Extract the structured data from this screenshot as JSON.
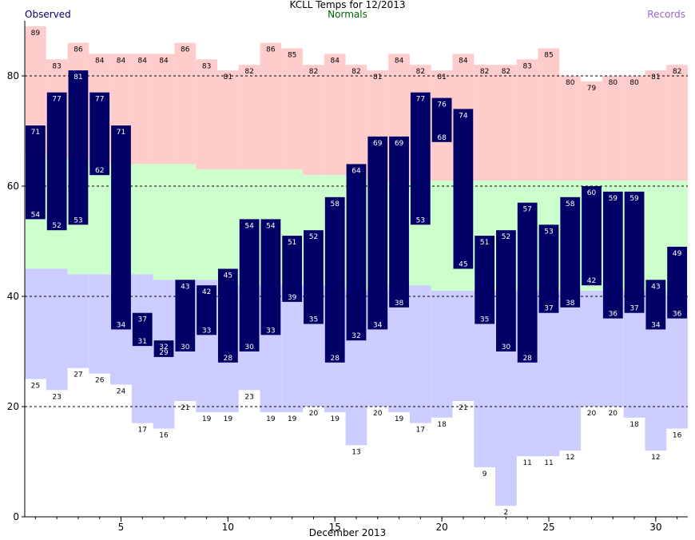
{
  "title": "KCLL Temps for 12/2013",
  "legend": {
    "observed": "Observed",
    "normals": "Normals",
    "records": "Records"
  },
  "colors": {
    "observed_bar": "#000066",
    "normals_band": "#ccffcc",
    "record_high_band": "#ffcccc",
    "record_low_band": "#ccccff",
    "observed_label": "#000066",
    "normals_label": "#006600",
    "records_label": "#9966cc"
  },
  "chart_data": {
    "type": "bar",
    "title": "KCLL Temps for 12/2013",
    "xlabel": "December 2013",
    "ylabel": "",
    "xlim": [
      0.5,
      31.5
    ],
    "ylim": [
      0,
      90
    ],
    "x_ticks": [
      5,
      10,
      15,
      20,
      25,
      30
    ],
    "y_ticks": [
      0,
      20,
      40,
      60,
      80
    ],
    "grid": "dashed horizontal lines at 20, 40, 60, 80",
    "days": [
      1,
      2,
      3,
      4,
      5,
      6,
      7,
      8,
      9,
      10,
      11,
      12,
      13,
      14,
      15,
      16,
      17,
      18,
      19,
      20,
      21,
      22,
      23,
      24,
      25,
      26,
      27,
      28,
      29,
      30,
      31
    ],
    "series": [
      {
        "name": "Observed",
        "role": "high",
        "values": [
          71,
          77,
          81,
          77,
          71,
          37,
          32,
          43,
          42,
          45,
          54,
          54,
          51,
          52,
          58,
          64,
          69,
          69,
          77,
          76,
          74,
          51,
          52,
          57,
          53,
          58,
          60,
          59,
          59,
          43,
          49
        ]
      },
      {
        "name": "Observed",
        "role": "low",
        "values": [
          54,
          52,
          53,
          62,
          34,
          31,
          29,
          30,
          33,
          28,
          30,
          33,
          39,
          35,
          28,
          32,
          34,
          38,
          53,
          68,
          45,
          35,
          30,
          28,
          37,
          38,
          42,
          36,
          37,
          34,
          36
        ]
      },
      {
        "name": "Records",
        "role": "record_high",
        "values": [
          89,
          83,
          86,
          84,
          84,
          84,
          84,
          86,
          83,
          81,
          82,
          86,
          85,
          82,
          84,
          82,
          81,
          84,
          82,
          81,
          84,
          82,
          82,
          83,
          85,
          80,
          79,
          80,
          80,
          81,
          82
        ]
      },
      {
        "name": "Records",
        "role": "record_low",
        "values": [
          25,
          23,
          27,
          26,
          24,
          17,
          16,
          21,
          19,
          19,
          23,
          19,
          19,
          20,
          19,
          13,
          20,
          19,
          17,
          18,
          21,
          9,
          2,
          11,
          11,
          12,
          20,
          20,
          18,
          12,
          16
        ]
      },
      {
        "name": "Normals",
        "role": "normal_high",
        "values": [
          66,
          65,
          65,
          64,
          64,
          64,
          64,
          64,
          63,
          63,
          63,
          63,
          63,
          62,
          62,
          62,
          61,
          61,
          61,
          61,
          61,
          61,
          61,
          61,
          61,
          61,
          61,
          61,
          61,
          61,
          61
        ]
      },
      {
        "name": "Normals",
        "role": "normal_low",
        "values": [
          45,
          45,
          44,
          44,
          44,
          44,
          43,
          43,
          43,
          42,
          42,
          42,
          42,
          42,
          42,
          41,
          41,
          42,
          42,
          41,
          41,
          41,
          41,
          41,
          41,
          41,
          41,
          41,
          41,
          41,
          40
        ]
      }
    ]
  }
}
